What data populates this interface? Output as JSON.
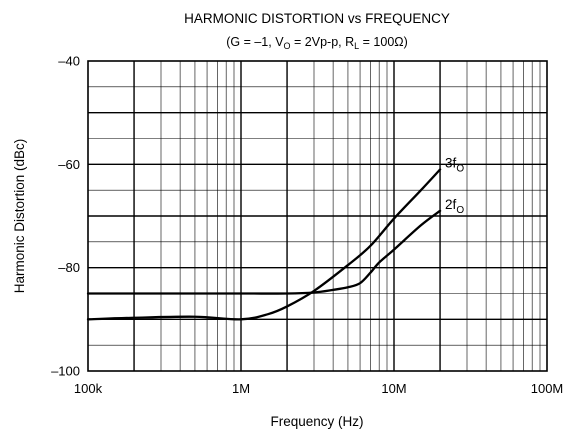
{
  "chart_data": {
    "type": "line",
    "title": "HARMONIC DISTORTION vs FREQUENCY",
    "subtitle": {
      "gain": "G = –1",
      "vo_sym": "V",
      "vo_sub": "O",
      "vo_val": " = 2Vp-p",
      "rl_sym": "R",
      "rl_sub": "L",
      "rl_val": " = 100Ω"
    },
    "xlabel": "Frequency (Hz)",
    "ylabel": "Harmonic Distortion (dBc)",
    "x_scale": "log",
    "xlim": [
      100000,
      100000000
    ],
    "ylim": [
      -100,
      -40
    ],
    "grid": true,
    "x_ticks": [
      {
        "value": 100000,
        "label": "100k"
      },
      {
        "value": 1000000,
        "label": "1M"
      },
      {
        "value": 10000000,
        "label": "10M"
      },
      {
        "value": 100000000,
        "label": "100M"
      }
    ],
    "y_ticks": [
      {
        "value": -40,
        "label": "–40"
      },
      {
        "value": -60,
        "label": "–60"
      },
      {
        "value": -80,
        "label": "–80"
      },
      {
        "value": -100,
        "label": "–100"
      }
    ],
    "series": [
      {
        "name": "3fO",
        "name_main": "3f",
        "name_sub": "O",
        "x": [
          100000,
          200000,
          500000,
          1000000,
          1500000,
          2000000,
          3000000,
          5000000,
          7000000,
          10000000,
          15000000,
          20000000
        ],
        "y": [
          -90,
          -89.7,
          -89.5,
          -90,
          -89,
          -87.5,
          -84.5,
          -79.5,
          -75.8,
          -70.5,
          -65,
          -61
        ]
      },
      {
        "name": "2fO",
        "name_main": "2f",
        "name_sub": "O",
        "x": [
          100000,
          300000,
          1000000,
          2000000,
          3000000,
          4000000,
          5000000,
          6000000,
          7000000,
          8000000,
          10000000,
          15000000,
          20000000
        ],
        "y": [
          -85,
          -85,
          -85,
          -85,
          -84.8,
          -84.3,
          -83.8,
          -83,
          -81,
          -79,
          -76.5,
          -71.8,
          -69
        ]
      }
    ]
  }
}
